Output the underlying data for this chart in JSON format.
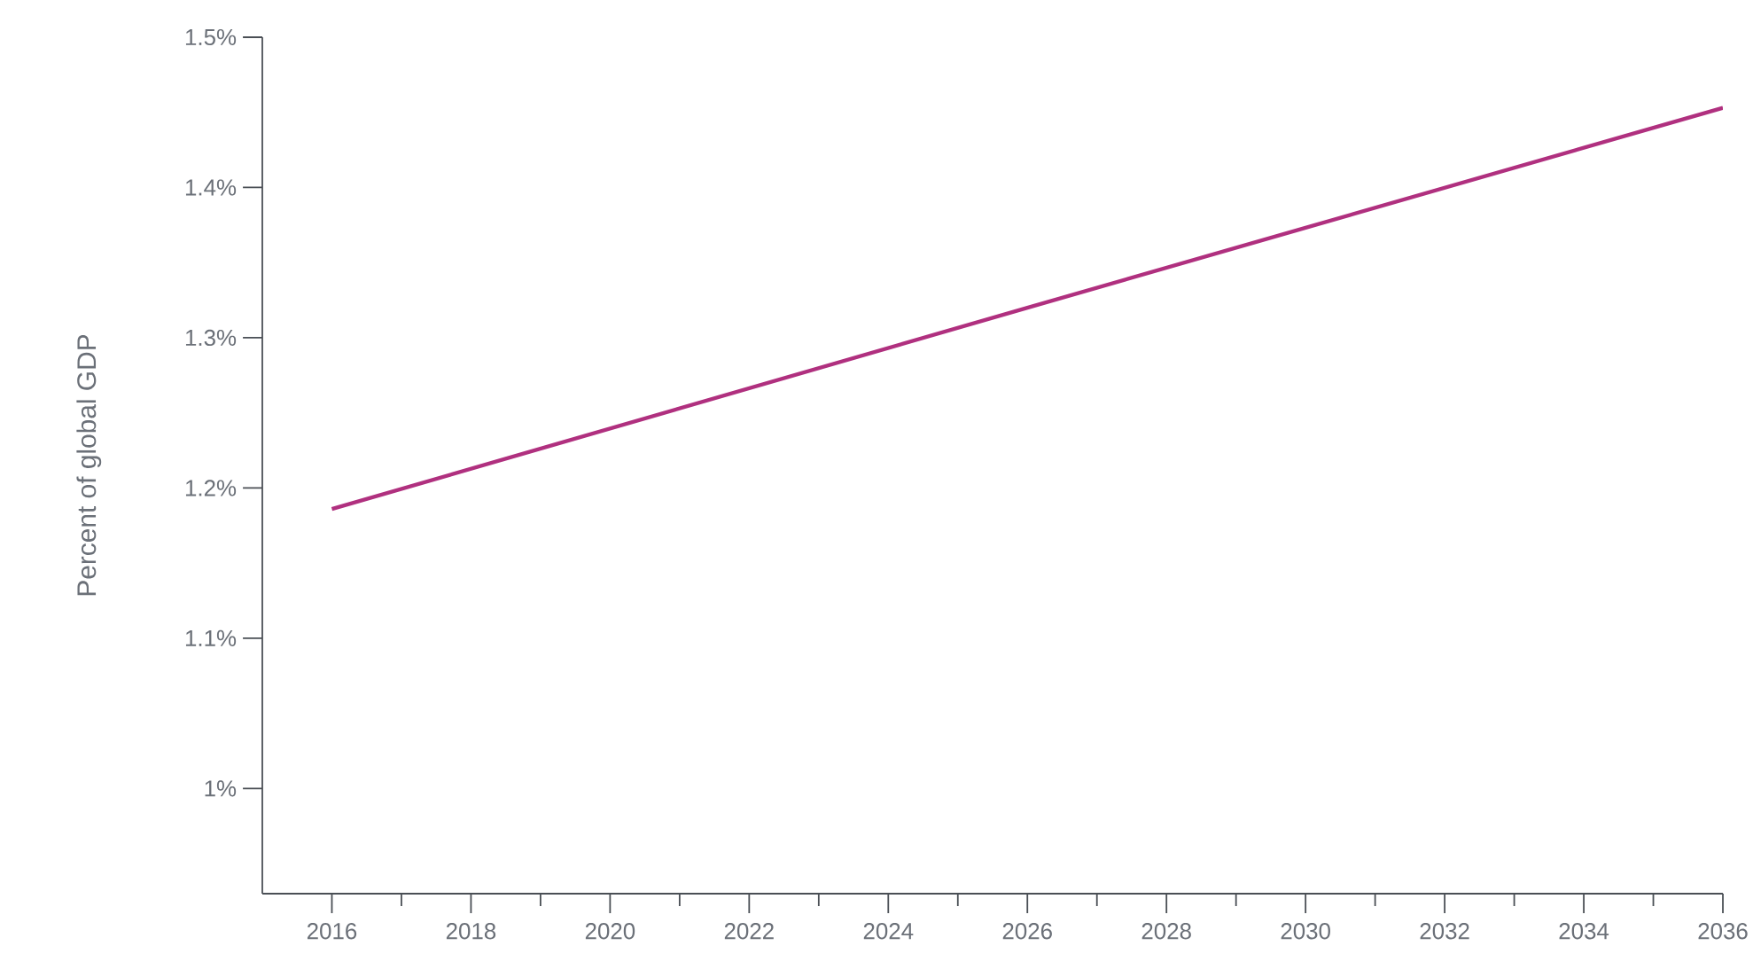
{
  "chart_data": {
    "type": "line",
    "ylabel": "Percent of global GDP",
    "x": [
      2016,
      2026,
      2036
    ],
    "series": [
      {
        "color": "#b0307f",
        "values": [
          1.186,
          1.32,
          1.453
        ]
      }
    ],
    "xlim": [
      2015,
      2036
    ],
    "xticks": [
      2016,
      {
        "value": 2017,
        "label": null
      },
      2018,
      {
        "value": 2019,
        "label": null
      },
      2020,
      {
        "value": 2021,
        "label": null
      },
      2022,
      {
        "value": 2023,
        "label": null
      },
      2024,
      {
        "value": 2025,
        "label": null
      },
      2026,
      {
        "value": 2027,
        "label": null
      },
      2028,
      {
        "value": 2029,
        "label": null
      },
      2030,
      {
        "value": 2031,
        "label": null
      },
      2032,
      {
        "value": 2033,
        "label": null
      },
      2034,
      {
        "value": 2035,
        "label": null
      },
      2036
    ],
    "ylim": [
      0.93,
      1.5
    ],
    "yticks": [
      {
        "value": 1,
        "label": "1%"
      },
      {
        "value": 1.1,
        "label": "1.1%"
      },
      {
        "value": 1.2,
        "label": "1.2%"
      },
      {
        "value": 1.3,
        "label": "1.3%"
      },
      {
        "value": 1.4,
        "label": "1.4%"
      },
      {
        "value": 1.5,
        "label": "1.5%"
      }
    ],
    "marker": "none",
    "line_style": "solid"
  }
}
